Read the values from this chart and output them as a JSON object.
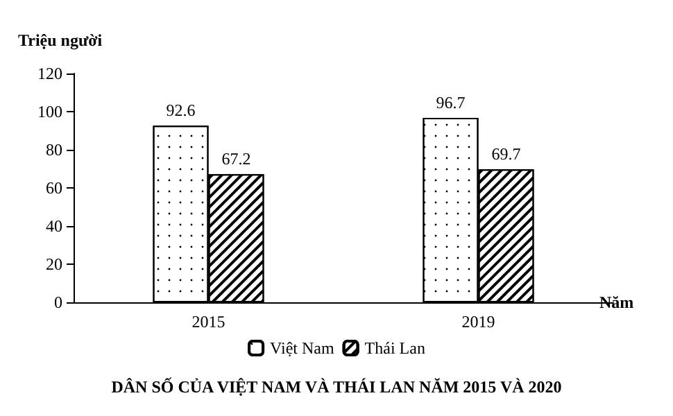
{
  "chart_data": {
    "type": "bar",
    "title": "DÂN SỐ CỦA VIỆT NAM VÀ THÁI LAN NĂM 2015 VÀ 2020",
    "xlabel": "Năm",
    "ylabel": "Triệu người",
    "categories": [
      "2015",
      "2019"
    ],
    "series": [
      {
        "name": "Việt Nam",
        "color": "#ffffff",
        "values": [
          92.6,
          96.7
        ]
      },
      {
        "name": "Thái Lan",
        "color": "#000000",
        "values": [
          67.2,
          69.7
        ]
      }
    ],
    "ylim": [
      0,
      120
    ],
    "yticks": [
      0,
      20,
      40,
      60,
      80,
      100,
      120
    ],
    "grid": false,
    "legend": "bottom",
    "data_labels": true
  }
}
